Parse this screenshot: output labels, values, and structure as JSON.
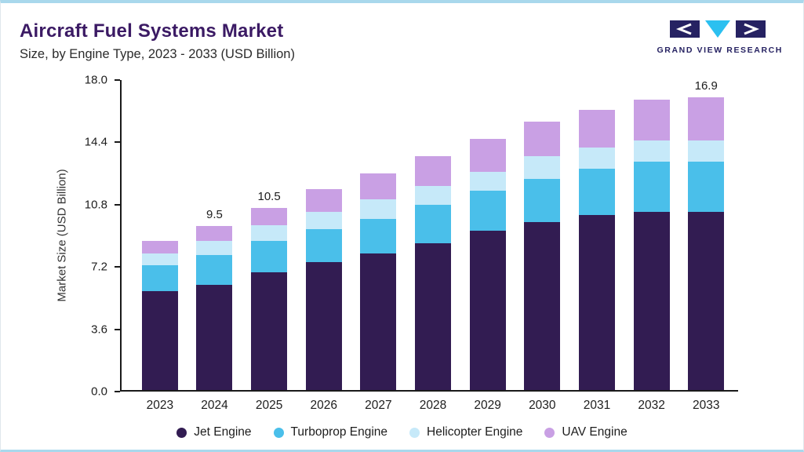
{
  "header": {
    "title": "Aircraft Fuel Systems Market",
    "subtitle": "Size, by Engine Type, 2023 - 2033 (USD Billion)",
    "logo_text": "GRAND VIEW RESEARCH"
  },
  "chart_data": {
    "type": "bar",
    "stacked": true,
    "title": "Aircraft Fuel Systems Market Size, by Engine Type, 2023 - 2033 (USD Billion)",
    "ylabel": "Market Size (USD Billion)",
    "xlabel": "",
    "categories": [
      "2023",
      "2024",
      "2025",
      "2026",
      "2027",
      "2028",
      "2029",
      "2030",
      "2031",
      "2032",
      "2033"
    ],
    "series": [
      {
        "name": "Jet Engine",
        "color": "#321C52",
        "values": [
          5.7,
          6.1,
          6.8,
          7.4,
          7.9,
          8.5,
          9.2,
          9.7,
          10.1,
          10.3,
          10.3
        ]
      },
      {
        "name": "Turboprop Engine",
        "color": "#4ABFEA",
        "values": [
          1.5,
          1.7,
          1.8,
          1.9,
          2.0,
          2.2,
          2.3,
          2.5,
          2.7,
          2.9,
          2.9
        ]
      },
      {
        "name": "Helicopter Engine",
        "color": "#C6E9F9",
        "values": [
          0.7,
          0.8,
          0.9,
          1.0,
          1.1,
          1.1,
          1.1,
          1.3,
          1.2,
          1.2,
          1.2
        ]
      },
      {
        "name": "UAV Engine",
        "color": "#C9A0E4",
        "values": [
          0.7,
          0.9,
          1.0,
          1.3,
          1.5,
          1.7,
          1.9,
          2.0,
          2.2,
          2.4,
          2.5
        ]
      }
    ],
    "totals": [
      8.6,
      9.5,
      10.5,
      11.6,
      12.5,
      13.5,
      14.5,
      15.5,
      16.2,
      16.8,
      16.9
    ],
    "bar_labels": {
      "2024": "9.5",
      "2025": "10.5",
      "2033": "16.9"
    },
    "yticks": [
      "18.0",
      "14.4",
      "10.8",
      "7.2",
      "3.6",
      "0.0"
    ],
    "ylim": [
      0,
      18.0
    ],
    "grid": false,
    "legend_position": "bottom"
  },
  "colors": {
    "accent_border": "#A9D8EC",
    "title_text": "#3b1a64",
    "axis": "#1a1a1a",
    "logo_navy": "#262262",
    "logo_cyan": "#2BC0F0"
  }
}
